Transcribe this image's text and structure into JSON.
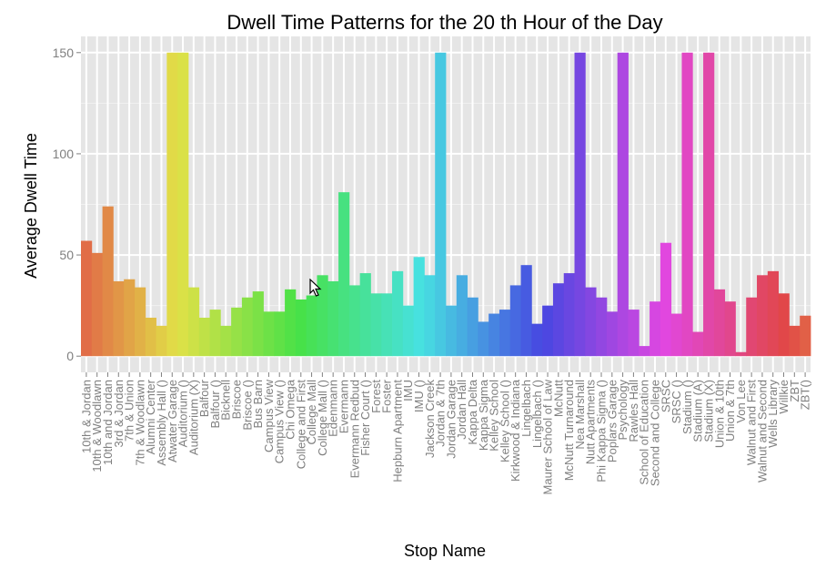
{
  "chart_data": {
    "type": "bar",
    "title": "Dwell Time Patterns for the  20 th Hour of the Day",
    "xlabel": "Stop Name",
    "ylabel": "Average Dwell Time",
    "ylim": [
      -8,
      158
    ],
    "yticks": [
      0,
      50,
      100,
      150
    ],
    "grid": true,
    "legend": "none",
    "categories": [
      "10th & Jordan",
      "10th & Woodlawn",
      "10th and Jordan",
      "3rd & Jordan",
      "7th & Union",
      "7th & Woodlawn",
      "Alumni Center",
      "Assembly Hall ()",
      "Atwater Garage",
      "Auditorium ()",
      "Auditorium (X)",
      "Balfour",
      "Balfour ()",
      "Bicknell",
      "Briscoe",
      "Briscoe ()",
      "Bus Barn",
      "Campus View",
      "Campus View ()",
      "Chi Omega",
      "College and First",
      "College Mall",
      "College Mall ()",
      "Edenmann",
      "Evermann",
      "Evermann Redbud",
      "Fisher Court ()",
      "Forest",
      "Foster",
      "Hepburn Apartment",
      "IMU",
      "IMU ()",
      "Jackson Creek",
      "Jordan & 7th",
      "Jordan Garage",
      "Jordan Hall",
      "Kappa Delta",
      "Kappa Sigma",
      "Kelley School",
      "Kelley School ()",
      "Kirkwood & Indiana",
      "Lingelbach",
      "Lingelbach ()",
      "Maurer School of Law",
      "McNutt",
      "McNutt Turnaround",
      "Nea Marshall",
      "Nutt Apartments",
      "Phi Kappa Sigma ()",
      "Poplars Garage",
      "Psychology",
      "Rawles Hall",
      "School of Education",
      "Second and College",
      "SRSC",
      "SRSC ()",
      "Stadium ()",
      "Stadium (A)",
      "Stadium (X)",
      "Union & 10th",
      "Union & 7th",
      "Von Lee",
      "Walnut and First",
      "Walnut and Second",
      "Wells Library",
      "Willkie",
      "ZBT",
      "ZBT()"
    ],
    "values": [
      57,
      51,
      74,
      37,
      38,
      34,
      19,
      15,
      150,
      150,
      34,
      19,
      23,
      15,
      24,
      29,
      32,
      22,
      22,
      33,
      28,
      30,
      40,
      37,
      81,
      35,
      41,
      31,
      31,
      42,
      25,
      49,
      40,
      150,
      25,
      40,
      29,
      17,
      21,
      23,
      35,
      45,
      16,
      25,
      36,
      41,
      150,
      34,
      29,
      22,
      150,
      23,
      5,
      27,
      56,
      21,
      150,
      12,
      150,
      33,
      27,
      2,
      29,
      40,
      42,
      31,
      15,
      20
    ],
    "axis_labels_shown": [
      "10th & Jordan",
      "10th & Woodlawn",
      "10th and Jordan",
      "3rd & Jordan",
      "7th & Union",
      "7th & Woodlawn",
      "Alumni Center",
      "Assembly Hall ()",
      "Atwater Garage",
      "Auditorium ()",
      "Auditorium (X)",
      "Balfour",
      "Balfour ()",
      "Bicknell",
      "Briscoe",
      "Briscoe ()",
      "Bus Barn",
      "Campus View",
      "Campus View ()",
      "Chi Omega",
      "College and First",
      "College Mall",
      "College Mall ()",
      "Edenmann",
      "Evermann",
      "Evermann Redbud",
      "Fisher Court ()",
      "Forest",
      "Foster",
      "Hepburn Apartment",
      "IMU",
      "IMU ()",
      "Jackson Creek",
      "Jordan & 7th",
      "Jordan Garage",
      "Jordan Hall",
      "Kappa Delta",
      "Kappa Sigma",
      "Kelley School",
      "Kelley School ()",
      "Kirkwood & Indiana",
      "Lingelbach",
      "Lingelbach ()",
      "Maurer School of Law",
      "McNutt",
      "McNutt Turnaround",
      "Nea Marshall",
      "Nutt Apartments",
      "Phi Kappa Sigma ()",
      "Poplars Garage",
      "Psychology",
      "Rawles Hall",
      "School of Education",
      "Second and College",
      "SRSC",
      "SRSC ()",
      "Stadium ()",
      "Stadium (A)",
      "Stadium (X)",
      "Union & 10th",
      "Union & 7th",
      "Von Lee",
      "Walnut and First",
      "Walnut and Second",
      "Wells Library",
      "Willkie",
      "ZBT",
      "ZBT()"
    ],
    "colors": {
      "panel": "#e5e5e5",
      "gridMajor": "#ffffff",
      "gridMinor": "#f2f2f2",
      "tick": "#7f7f7f",
      "palette_hue_start": 15,
      "palette_hue_end": 375
    }
  }
}
